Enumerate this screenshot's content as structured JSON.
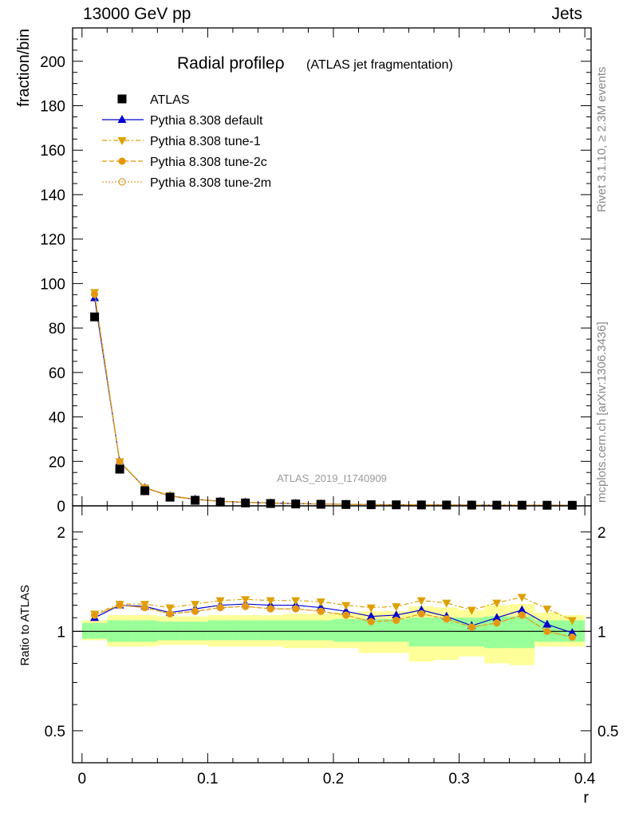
{
  "header": {
    "left": "13000 GeV pp",
    "right": "Jets"
  },
  "side_labels": {
    "top": "Rivet 3.1.10, ≥ 2.3M events",
    "bottom": "mcplots.cern.ch [arXiv:1306.3436]"
  },
  "colors": {
    "data": "#000000",
    "default": "#0000cc",
    "tune1": "#dda000",
    "tune2c": "#e69500",
    "tune2m": "#e0a030",
    "band_inner": "#99ff99",
    "band_outer": "#ffff99"
  },
  "chart_data": {
    "type": "line",
    "title": "Radial profileρ",
    "title_suffix": "(ATLAS jet fragmentation)",
    "analysis_label": "ATLAS_2019_I1740909",
    "xlabel": "r",
    "ylabel": "fraction/bin",
    "ratio_ylabel": "Ratio to ATLAS",
    "xlim": [
      -0.0075,
      0.405
    ],
    "ylim": [
      0,
      215
    ],
    "ratio_ylim": [
      0.4,
      2.4
    ],
    "ratio_scale": "log",
    "x_ticks": [
      "0",
      "0.1",
      "0.2",
      "0.3",
      "0.4"
    ],
    "y_ticks": [
      "0",
      "20",
      "40",
      "60",
      "80",
      "100",
      "120",
      "140",
      "160",
      "180",
      "200"
    ],
    "ratio_ticks": [
      "0.5",
      "1",
      "2"
    ],
    "x": [
      0.01,
      0.03,
      0.05,
      0.07,
      0.09,
      0.11,
      0.13,
      0.15,
      0.17,
      0.19,
      0.21,
      0.23,
      0.25,
      0.27,
      0.29,
      0.31,
      0.33,
      0.35,
      0.37,
      0.39
    ],
    "bin_edges": [
      0.0,
      0.02,
      0.04,
      0.06,
      0.08,
      0.1,
      0.12,
      0.14,
      0.16,
      0.18,
      0.2,
      0.22,
      0.24,
      0.26,
      0.28,
      0.3,
      0.32,
      0.34,
      0.36,
      0.38,
      0.4
    ],
    "data": {
      "name": "ATLAS",
      "values": [
        85,
        16.5,
        6.8,
        3.9,
        2.5,
        1.7,
        1.3,
        1.05,
        0.85,
        0.7,
        0.6,
        0.5,
        0.45,
        0.4,
        0.36,
        0.33,
        0.3,
        0.28,
        0.26,
        0.25
      ],
      "band_inner": [
        [
          0.95,
          1.06
        ],
        [
          0.93,
          1.08
        ],
        [
          0.93,
          1.08
        ],
        [
          0.94,
          1.07
        ],
        [
          0.94,
          1.07
        ],
        [
          0.94,
          1.08
        ],
        [
          0.94,
          1.08
        ],
        [
          0.94,
          1.08
        ],
        [
          0.94,
          1.08
        ],
        [
          0.94,
          1.08
        ],
        [
          0.93,
          1.09
        ],
        [
          0.93,
          1.09
        ],
        [
          0.93,
          1.09
        ],
        [
          0.9,
          1.1
        ],
        [
          0.9,
          1.1
        ],
        [
          0.9,
          1.1
        ],
        [
          0.89,
          1.11
        ],
        [
          0.89,
          1.11
        ],
        [
          0.93,
          1.08
        ],
        [
          0.93,
          1.08
        ]
      ],
      "band_outer": [
        [
          0.94,
          1.08
        ],
        [
          0.9,
          1.12
        ],
        [
          0.9,
          1.12
        ],
        [
          0.91,
          1.11
        ],
        [
          0.91,
          1.11
        ],
        [
          0.9,
          1.12
        ],
        [
          0.9,
          1.12
        ],
        [
          0.9,
          1.12
        ],
        [
          0.89,
          1.13
        ],
        [
          0.89,
          1.13
        ],
        [
          0.89,
          1.14
        ],
        [
          0.86,
          1.15
        ],
        [
          0.86,
          1.15
        ],
        [
          0.81,
          1.19
        ],
        [
          0.82,
          1.18
        ],
        [
          0.84,
          1.16
        ],
        [
          0.8,
          1.2
        ],
        [
          0.79,
          1.21
        ],
        [
          0.9,
          1.14
        ],
        [
          0.9,
          1.12
        ]
      ]
    },
    "series": [
      {
        "name": "Pythia 8.308 default",
        "color": "#0000cc",
        "marker": "triangle-up",
        "line": "solid",
        "ratio": [
          1.1,
          1.2,
          1.19,
          1.14,
          1.17,
          1.2,
          1.21,
          1.2,
          1.2,
          1.18,
          1.15,
          1.11,
          1.12,
          1.16,
          1.11,
          1.04,
          1.1,
          1.16,
          1.05,
          0.99
        ]
      },
      {
        "name": "Pythia 8.308 tune-1",
        "color": "#dda000",
        "marker": "triangle-down",
        "line": "dashdot",
        "ratio": [
          1.13,
          1.21,
          1.21,
          1.18,
          1.21,
          1.24,
          1.25,
          1.24,
          1.24,
          1.23,
          1.2,
          1.18,
          1.19,
          1.24,
          1.22,
          1.16,
          1.22,
          1.27,
          1.17,
          1.08
        ]
      },
      {
        "name": "Pythia 8.308 tune-2c",
        "color": "#e69500",
        "marker": "circle",
        "line": "dashed",
        "ratio": [
          1.12,
          1.2,
          1.18,
          1.13,
          1.15,
          1.18,
          1.19,
          1.17,
          1.17,
          1.15,
          1.12,
          1.07,
          1.08,
          1.13,
          1.09,
          1.03,
          1.06,
          1.12,
          1.0,
          0.96
        ]
      },
      {
        "name": "Pythia 8.308 tune-2m",
        "color": "#e0a030",
        "marker": "circle-open",
        "line": "dotted",
        "ratio": [
          1.12,
          1.2,
          1.18,
          1.13,
          1.15,
          1.18,
          1.19,
          1.17,
          1.17,
          1.15,
          1.12,
          1.07,
          1.08,
          1.13,
          1.09,
          1.03,
          1.06,
          1.12,
          1.0,
          0.96
        ]
      }
    ],
    "legend_position": "top-left"
  }
}
